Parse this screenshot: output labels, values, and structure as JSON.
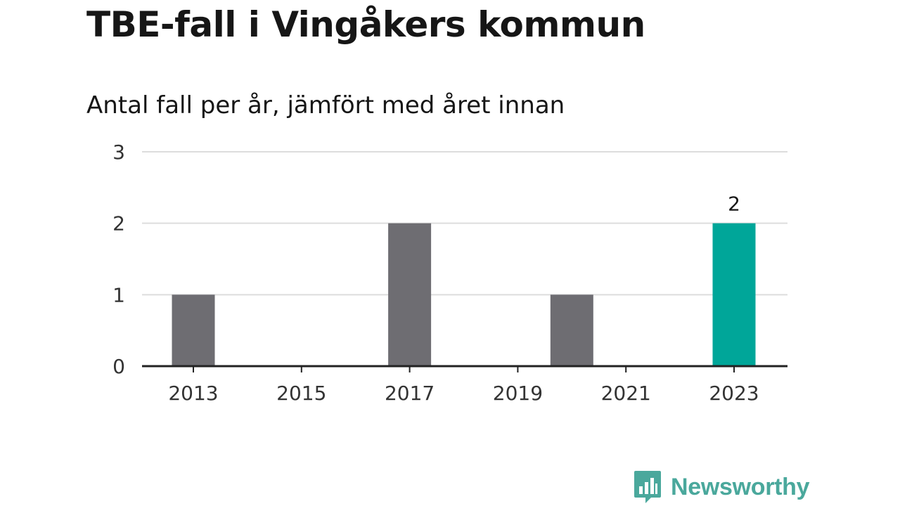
{
  "header": {
    "title": "TBE-fall i Vingåkers kommun",
    "subtitle": "Antal fall per år, jämfört med året innan"
  },
  "brand": {
    "name": "Newsworthy",
    "icon": "bar-chart-speech-bubble-icon",
    "color": "#4aa89c"
  },
  "chart_data": {
    "type": "bar",
    "x": [
      2013,
      2014,
      2015,
      2016,
      2017,
      2018,
      2019,
      2020,
      2021,
      2022,
      2023
    ],
    "values": [
      1,
      0,
      0,
      0,
      2,
      0,
      0,
      1,
      0,
      0,
      2
    ],
    "xticks": [
      "2013",
      "2015",
      "2017",
      "2019",
      "2021",
      "2023"
    ],
    "yticks": [
      "0",
      "1",
      "2",
      "3"
    ],
    "ylim": [
      0,
      3
    ],
    "highlight": {
      "x": 2023,
      "label": "2"
    },
    "colors": {
      "bar": "#6e6d72",
      "highlight": "#00a699",
      "grid": "#dddddd",
      "axis": "#222222"
    },
    "grid": true
  }
}
